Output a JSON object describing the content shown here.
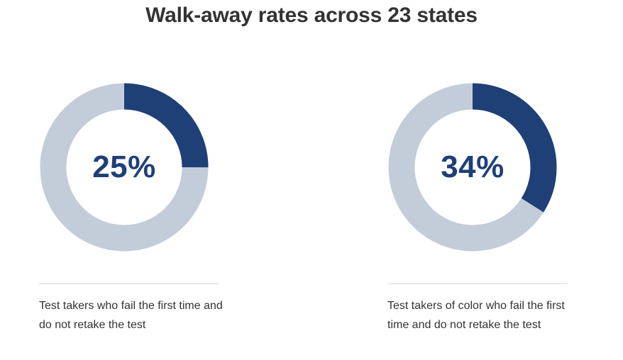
{
  "title": "Walk-away rates across 23 states",
  "colors": {
    "filled": "#1f3f77",
    "track": "#c3cdd9",
    "label": "#1f3f77",
    "text": "#333333"
  },
  "chart_data": [
    {
      "type": "pie",
      "variant": "donut",
      "value_percent": 25,
      "label": "25%",
      "caption": "Test takers who fail the first time and do not retake the test"
    },
    {
      "type": "pie",
      "variant": "donut",
      "value_percent": 34,
      "label": "34%",
      "caption": "Test takers of color who fail the first time and do not retake the test"
    }
  ]
}
